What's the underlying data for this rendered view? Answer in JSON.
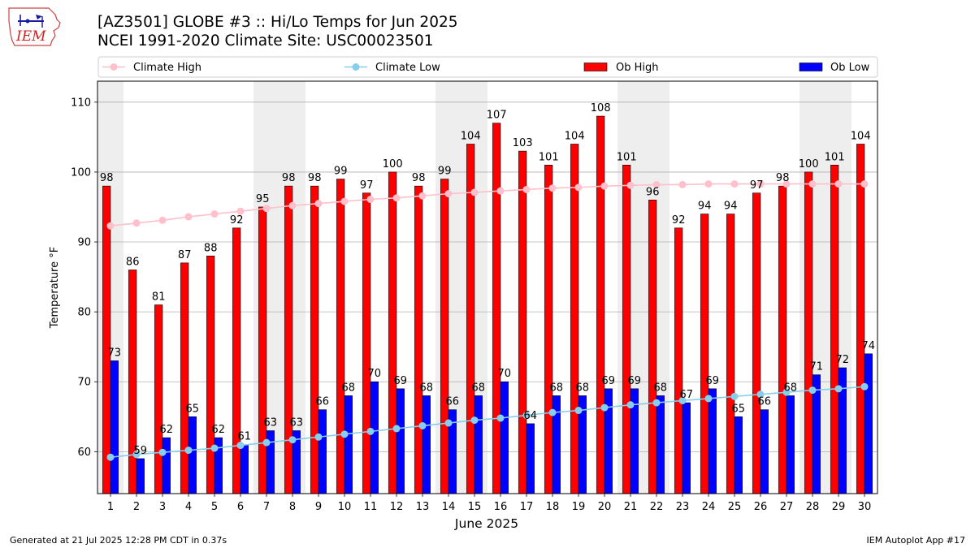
{
  "header": {
    "title": "[AZ3501] GLOBE #3 :: Hi/Lo Temps for Jun 2025",
    "subtitle": "NCEI 1991-2020 Climate Site: USC00023501",
    "logo_text": "IEM"
  },
  "footer": {
    "generated": "Generated at 21 Jul 2025 12:28 PM CDT in 0.37s",
    "app": "IEM Autoplot App #17"
  },
  "colors": {
    "ob_high": "#ff0000",
    "ob_low": "#0000ff",
    "climate_high": "#ffc0cb",
    "climate_low": "#87ceeb",
    "weekend_shade": "#eeeeee"
  },
  "chart_data": {
    "type": "bar",
    "xlabel": "June 2025",
    "ylabel": "Temperature °F",
    "ylim": [
      54,
      113
    ],
    "yticks": [
      60,
      70,
      80,
      90,
      100,
      110
    ],
    "grid": "horizontal",
    "legend_position": "top",
    "shaded_days": [
      1,
      7,
      8,
      14,
      15,
      21,
      22,
      28,
      29
    ],
    "categories": [
      "1",
      "2",
      "3",
      "4",
      "5",
      "6",
      "7",
      "8",
      "9",
      "10",
      "11",
      "12",
      "13",
      "14",
      "15",
      "16",
      "17",
      "18",
      "19",
      "20",
      "21",
      "22",
      "23",
      "24",
      "25",
      "26",
      "27",
      "28",
      "29",
      "30"
    ],
    "series": [
      {
        "name": "Climate High",
        "kind": "line",
        "values": [
          92.3,
          92.7,
          93.1,
          93.6,
          94.0,
          94.4,
          94.8,
          95.2,
          95.5,
          95.8,
          96.1,
          96.3,
          96.6,
          96.9,
          97.1,
          97.3,
          97.5,
          97.7,
          97.8,
          98.0,
          98.1,
          98.2,
          98.2,
          98.3,
          98.3,
          98.3,
          98.3,
          98.3,
          98.3,
          98.3
        ]
      },
      {
        "name": "Climate Low",
        "kind": "line",
        "values": [
          59.2,
          59.6,
          59.9,
          60.2,
          60.5,
          60.9,
          61.3,
          61.7,
          62.1,
          62.5,
          62.9,
          63.3,
          63.7,
          64.1,
          64.5,
          64.8,
          65.2,
          65.6,
          65.9,
          66.3,
          66.7,
          67.0,
          67.3,
          67.6,
          67.9,
          68.2,
          68.5,
          68.8,
          69.0,
          69.3
        ]
      },
      {
        "name": "Ob High",
        "kind": "bar",
        "values": [
          98,
          86,
          81,
          87,
          88,
          92,
          95,
          98,
          98,
          99,
          97,
          100,
          98,
          99,
          104,
          107,
          103,
          101,
          104,
          108,
          101,
          96,
          92,
          94,
          94,
          97,
          98,
          100,
          101,
          104
        ]
      },
      {
        "name": "Ob Low",
        "kind": "bar",
        "values": [
          73,
          59,
          62,
          65,
          62,
          61,
          63,
          63,
          66,
          68,
          70,
          69,
          68,
          66,
          68,
          70,
          64,
          68,
          68,
          69,
          69,
          68,
          67,
          69,
          65,
          66,
          68,
          71,
          72,
          74
        ]
      }
    ]
  }
}
